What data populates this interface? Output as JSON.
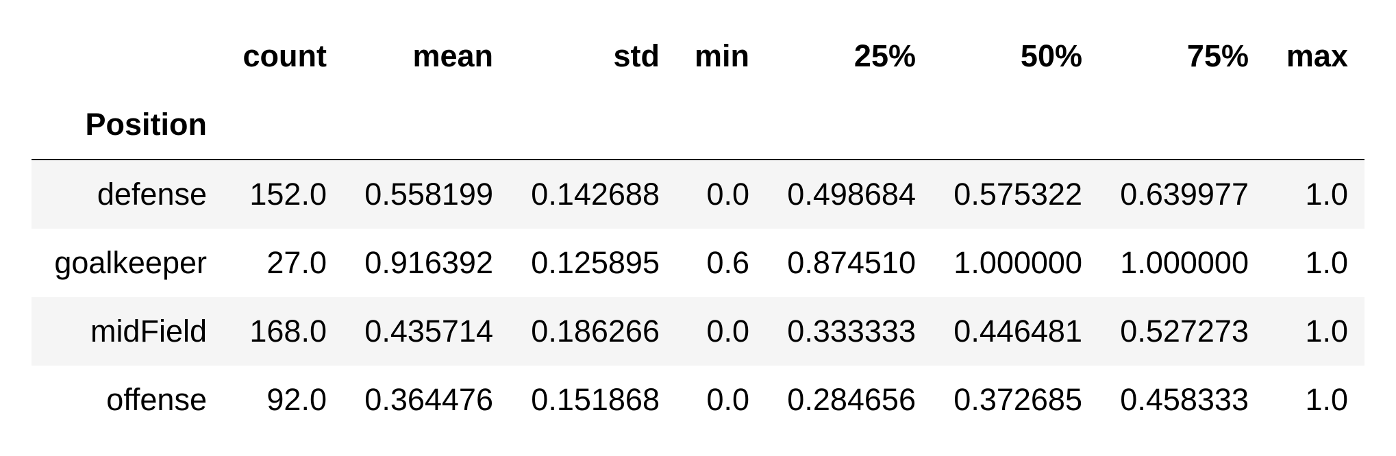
{
  "table": {
    "columns": [
      "count",
      "mean",
      "std",
      "min",
      "25%",
      "50%",
      "75%",
      "max"
    ],
    "index_name": "Position",
    "rows": [
      {
        "label": "defense",
        "values": [
          "152.0",
          "0.558199",
          "0.142688",
          "0.0",
          "0.498684",
          "0.575322",
          "0.639977",
          "1.0"
        ]
      },
      {
        "label": "goalkeeper",
        "values": [
          "27.0",
          "0.916392",
          "0.125895",
          "0.6",
          "0.874510",
          "1.000000",
          "1.000000",
          "1.0"
        ]
      },
      {
        "label": "midField",
        "values": [
          "168.0",
          "0.435714",
          "0.186266",
          "0.0",
          "0.333333",
          "0.446481",
          "0.527273",
          "1.0"
        ]
      },
      {
        "label": "offense",
        "values": [
          "92.0",
          "0.364476",
          "0.151868",
          "0.0",
          "0.284656",
          "0.372685",
          "0.458333",
          "1.0"
        ]
      }
    ]
  }
}
